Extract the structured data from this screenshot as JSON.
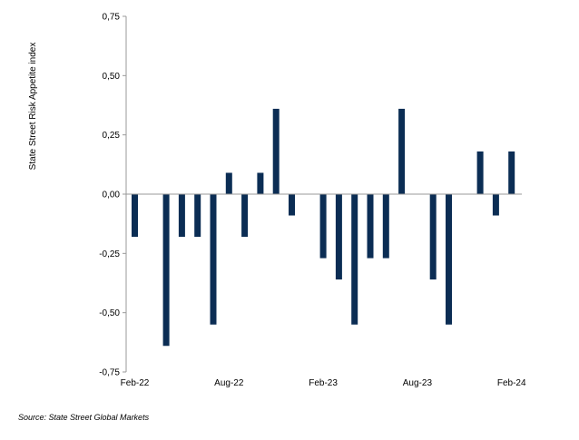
{
  "chart_data": {
    "type": "bar",
    "ylabel": "State Street Risk Appetite index",
    "ylim": [
      -0.75,
      0.75
    ],
    "yticks": [
      "0,75",
      "0,50",
      "0,25",
      "0,00",
      "-0,25",
      "-0,50",
      "-0,75"
    ],
    "ytick_values": [
      0.75,
      0.5,
      0.25,
      0,
      -0.25,
      -0.5,
      -0.75
    ],
    "x_tick_labels": [
      "Feb-22",
      "Aug-22",
      "Feb-23",
      "Aug-23",
      "Feb-24"
    ],
    "x_tick_indices": [
      0,
      6,
      12,
      18,
      24
    ],
    "categories": [
      "Feb-22",
      "Mar-22",
      "Apr-22",
      "May-22",
      "Jun-22",
      "Jul-22",
      "Aug-22",
      "Sep-22",
      "Oct-22",
      "Nov-22",
      "Dec-22",
      "Jan-23",
      "Feb-23",
      "Mar-23",
      "Apr-23",
      "May-23",
      "Jun-23",
      "Jul-23",
      "Aug-23",
      "Sep-23",
      "Oct-23",
      "Nov-23",
      "Dec-23",
      "Jan-24",
      "Feb-24"
    ],
    "values": [
      -0.18,
      0,
      -0.64,
      -0.18,
      -0.18,
      -0.55,
      0.09,
      -0.18,
      0.09,
      0.36,
      -0.09,
      0,
      -0.27,
      -0.36,
      -0.55,
      -0.27,
      -0.27,
      0.36,
      0,
      -0.36,
      -0.55,
      0,
      0.18,
      -0.09,
      0.18
    ],
    "bar_color": "#0b2d54",
    "grid": false,
    "legend": "none"
  },
  "source": "Source: State Street Global Markets"
}
